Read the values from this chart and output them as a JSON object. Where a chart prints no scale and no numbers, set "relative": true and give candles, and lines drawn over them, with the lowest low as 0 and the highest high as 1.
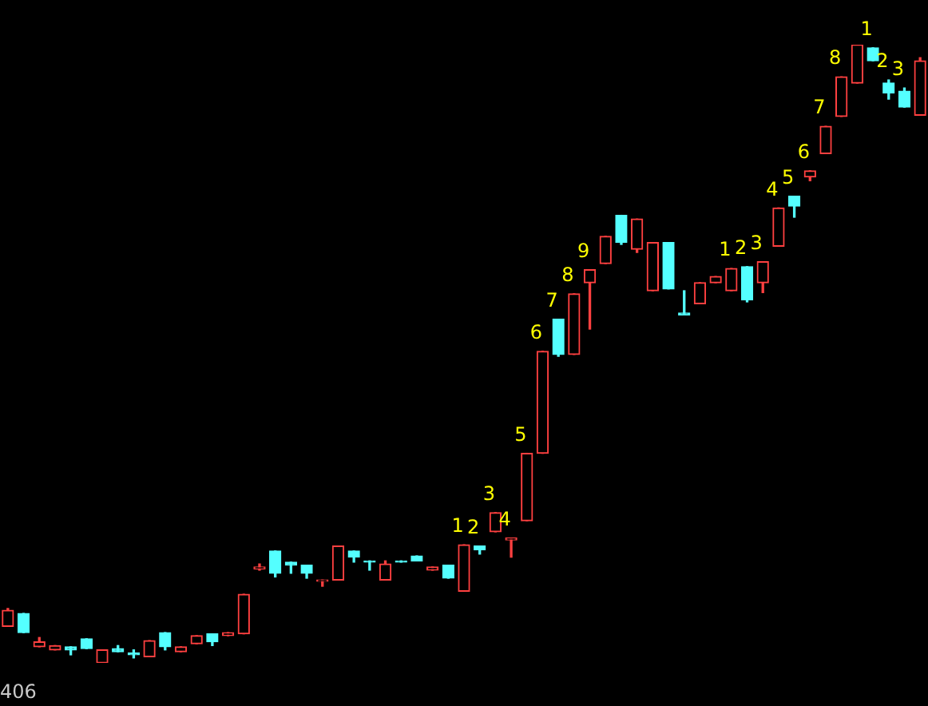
{
  "chart_data": {
    "type": "candlestick",
    "relative": true,
    "categories": [
      null,
      null,
      null,
      null,
      null,
      null,
      null,
      null,
      null,
      null,
      null,
      null,
      null,
      null,
      null,
      null,
      null,
      null,
      null,
      null,
      null,
      null,
      null,
      null,
      null,
      null,
      null,
      null,
      null,
      null,
      null,
      null,
      null,
      null,
      null,
      null,
      null,
      null,
      null,
      null,
      null,
      null,
      null,
      null,
      null,
      null,
      null,
      null,
      null,
      null,
      null,
      null,
      null,
      null,
      null,
      null,
      null,
      null,
      null
    ],
    "ohlc": [
      [
        0.059,
        0.088,
        0.059,
        0.085
      ],
      [
        0.08,
        0.08,
        0.049,
        0.049
      ],
      [
        0.026,
        0.041,
        0.026,
        0.034
      ],
      [
        0.021,
        0.028,
        0.021,
        0.028
      ],
      [
        0.026,
        0.026,
        0.013,
        0.021
      ],
      [
        0.039,
        0.039,
        0.023,
        0.023
      ],
      [
        0,
        0.021,
        0,
        0.021
      ],
      [
        0.023,
        0.028,
        0.018,
        0.018
      ],
      [
        0.016,
        0.021,
        0.008,
        0.013
      ],
      [
        0.01,
        0.036,
        0.01,
        0.036
      ],
      [
        0.049,
        0.049,
        0.021,
        0.026
      ],
      [
        0.018,
        0.026,
        0.018,
        0.026
      ],
      [
        0.031,
        0.044,
        0.031,
        0.044
      ],
      [
        0.047,
        0.047,
        0.028,
        0.034
      ],
      [
        0.044,
        0.049,
        0.044,
        0.049
      ],
      [
        0.047,
        0.111,
        0.047,
        0.111
      ],
      [
        0.152,
        0.16,
        0.15,
        0.155
      ],
      [
        0.181,
        0.181,
        0.139,
        0.145
      ],
      [
        0.163,
        0.163,
        0.145,
        0.158
      ],
      [
        0.158,
        0.158,
        0.137,
        0.145
      ],
      [
        0.132,
        0.134,
        0.124,
        0.134
      ],
      [
        0.134,
        0.189,
        0.134,
        0.189
      ],
      [
        0.181,
        0.181,
        0.163,
        0.171
      ],
      [
        0.165,
        0.165,
        0.15,
        0.163
      ],
      [
        0.134,
        0.165,
        0.134,
        0.16
      ],
      [
        0.165,
        0.165,
        0.163,
        0.163
      ],
      [
        0.173,
        0.173,
        0.165,
        0.165
      ],
      [
        0.15,
        0.155,
        0.15,
        0.155
      ],
      [
        0.158,
        0.158,
        0.137,
        0.137
      ],
      [
        0.116,
        0.191,
        0.116,
        0.191
      ],
      [
        0.189,
        0.189,
        0.176,
        0.183
      ],
      [
        0.212,
        0.243,
        0.212,
        0.243
      ],
      [
        0.199,
        0.202,
        0.171,
        0.202
      ],
      [
        0.23,
        0.339,
        0.23,
        0.339
      ],
      [
        0.339,
        0.504,
        0.339,
        0.504
      ],
      [
        0.556,
        0.556,
        0.496,
        0.499
      ],
      [
        0.499,
        0.597,
        0.499,
        0.597
      ],
      [
        0.615,
        0.636,
        0.54,
        0.636
      ],
      [
        0.646,
        0.69,
        0.646,
        0.69
      ],
      [
        0.724,
        0.724,
        0.677,
        0.68
      ],
      [
        0.669,
        0.718,
        0.664,
        0.718
      ],
      [
        0.602,
        0.68,
        0.602,
        0.68
      ],
      [
        0.68,
        0.68,
        0.605,
        0.605
      ],
      [
        0.566,
        0.602,
        0.563,
        0.563
      ],
      [
        0.581,
        0.615,
        0.581,
        0.615
      ],
      [
        0.615,
        0.625,
        0.615,
        0.625
      ],
      [
        0.602,
        0.638,
        0.602,
        0.638
      ],
      [
        0.641,
        0.641,
        0.584,
        0.587
      ],
      [
        0.615,
        0.649,
        0.599,
        0.649
      ],
      [
        0.674,
        0.736,
        0.674,
        0.736
      ],
      [
        0.755,
        0.755,
        0.721,
        0.739
      ],
      [
        0.786,
        0.796,
        0.78,
        0.796
      ],
      [
        0.824,
        0.868,
        0.824,
        0.868
      ],
      [
        0.884,
        0.948,
        0.884,
        0.948
      ],
      [
        0.938,
        1,
        0.938,
        1
      ],
      [
        0.995,
        0.995,
        0.974,
        0.974
      ],
      [
        0.938,
        0.943,
        0.912,
        0.922
      ],
      [
        0.925,
        0.93,
        0.899,
        0.899
      ],
      [
        0.886,
        0.979,
        0.886,
        0.974
      ]
    ],
    "colors": [
      "#ff4040",
      "#54ffff",
      "#ff4040",
      "#ff4040",
      "#54ffff",
      "#54ffff",
      "#ff4040",
      "#54ffff",
      "#54ffff",
      "#ff4040",
      "#54ffff",
      "#ff4040",
      "#ff4040",
      "#54ffff",
      "#ff4040",
      "#ff4040",
      "#ff4040",
      "#54ffff",
      "#54ffff",
      "#54ffff",
      "#ff4040",
      "#ff4040",
      "#54ffff",
      "#54ffff",
      "#ff4040",
      "#54ffff",
      "#54ffff",
      "#ff4040",
      "#54ffff",
      "#ff4040",
      "#54ffff",
      "#ff4040",
      "#ff4040",
      "#ff4040",
      "#ff4040",
      "#54ffff",
      "#ff4040",
      "#ff4040",
      "#ff4040",
      "#54ffff",
      "#ff4040",
      "#ff4040",
      "#54ffff",
      "#54ffff",
      "#ff4040",
      "#ff4040",
      "#ff4040",
      "#54ffff",
      "#ff4040",
      "#ff4040",
      "#54ffff",
      "#ff4040",
      "#ff4040",
      "#ff4040",
      "#ff4040",
      "#54ffff",
      "#54ffff",
      "#54ffff",
      "#ff4040"
    ],
    "value_labels": [
      null,
      null,
      null,
      null,
      null,
      null,
      null,
      null,
      null,
      null,
      null,
      null,
      null,
      null,
      null,
      null,
      null,
      null,
      null,
      null,
      null,
      null,
      null,
      null,
      null,
      null,
      null,
      null,
      null,
      "1",
      "2",
      "3",
      "4",
      "5",
      "6",
      "7",
      "8",
      "9",
      null,
      null,
      null,
      null,
      null,
      null,
      null,
      null,
      "1",
      "2",
      "3",
      "4",
      "5",
      "6",
      "7",
      "8",
      null,
      "1",
      "2",
      "3",
      null
    ],
    "annotations": [
      "406"
    ]
  }
}
